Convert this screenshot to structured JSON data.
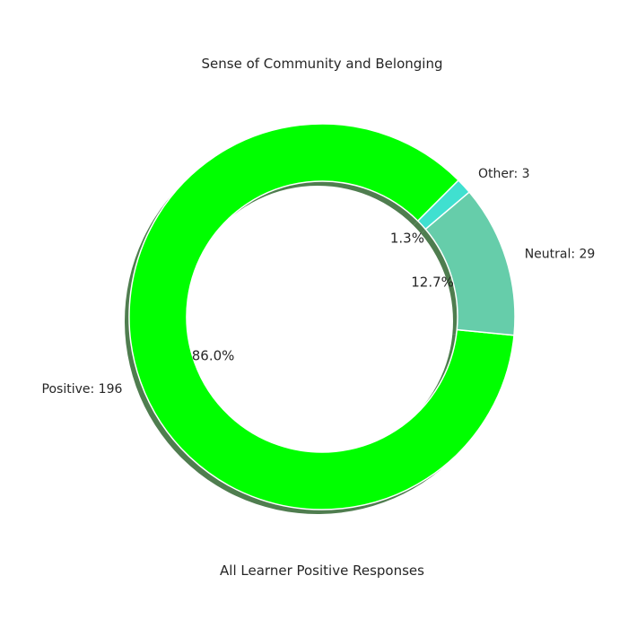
{
  "chart_data": {
    "type": "pie",
    "style": "donut",
    "title": "Sense of Community and Belonging",
    "xlabel": "All Learner Positive Responses",
    "shadow": true,
    "slices": [
      {
        "label": "Positive: 196",
        "value": 196,
        "percent_label": "86.0%",
        "color": "#00ff00"
      },
      {
        "label": "Neutral: 29",
        "value": 29,
        "percent_label": "12.7%",
        "color": "#66cdaa"
      },
      {
        "label": "Other: 3",
        "value": 3,
        "percent_label": "1.3%",
        "color": "#40e0d0"
      }
    ]
  }
}
